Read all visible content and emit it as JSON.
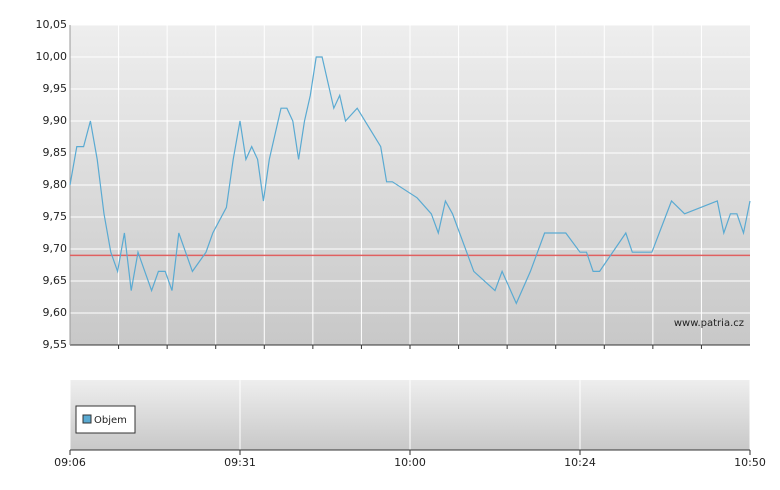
{
  "chart_data": {
    "type": "line",
    "x": [
      "09:06",
      "09:07",
      "09:08",
      "09:09",
      "09:10",
      "09:11",
      "09:12",
      "09:13",
      "09:14",
      "09:15",
      "09:16",
      "09:17",
      "09:18",
      "09:19",
      "09:20",
      "09:21",
      "09:22",
      "09:24",
      "09:26",
      "09:27",
      "09:29",
      "09:30",
      "09:31",
      "09:32",
      "09:33",
      "09:34",
      "09:35",
      "09:36",
      "09:38",
      "09:39",
      "09:40",
      "09:41",
      "09:42",
      "09:43",
      "09:44",
      "09:45",
      "09:47",
      "09:48",
      "09:49",
      "09:51",
      "09:55",
      "09:56",
      "09:57",
      "10:01",
      "10:03",
      "10:04",
      "10:05",
      "10:06",
      "10:09",
      "10:12",
      "10:13",
      "10:15",
      "10:17",
      "10:19",
      "10:22",
      "10:24",
      "10:25",
      "10:26",
      "10:27",
      "10:31",
      "10:32",
      "10:35",
      "10:38",
      "10:40",
      "10:45",
      "10:46",
      "10:47",
      "10:48",
      "10:49",
      "10:50"
    ],
    "series": [
      {
        "name": "Objem",
        "color": "#5aaad2",
        "values": [
          9.8,
          9.86,
          9.86,
          9.9,
          9.84,
          9.755,
          9.695,
          9.665,
          9.725,
          9.635,
          9.695,
          9.665,
          9.635,
          9.665,
          9.665,
          9.635,
          9.725,
          9.665,
          9.695,
          9.725,
          9.765,
          9.84,
          9.9,
          9.84,
          9.86,
          9.84,
          9.775,
          9.84,
          9.92,
          9.92,
          9.9,
          9.84,
          9.9,
          9.94,
          10.0,
          10.0,
          9.92,
          9.94,
          9.9,
          9.92,
          9.86,
          9.805,
          9.805,
          9.78,
          9.755,
          9.725,
          9.775,
          9.755,
          9.665,
          9.635,
          9.665,
          9.615,
          9.665,
          9.725,
          9.725,
          9.695,
          9.695,
          9.665,
          9.665,
          9.725,
          9.695,
          9.695,
          9.775,
          9.755,
          9.775,
          9.725,
          9.755,
          9.755,
          9.725,
          9.775
        ]
      }
    ],
    "reference_line": {
      "value": 9.69,
      "color": "#e06060"
    },
    "xticks": [
      "09:06",
      "09:31",
      "10:00",
      "10:24",
      "10:50"
    ],
    "ylim": [
      9.55,
      10.05
    ],
    "yticks": [
      {
        "value": 9.55,
        "label": "9,55"
      },
      {
        "value": 9.6,
        "label": "9,60"
      },
      {
        "value": 9.65,
        "label": "9,65"
      },
      {
        "value": 9.7,
        "label": "9,70"
      },
      {
        "value": 9.75,
        "label": "9,75"
      },
      {
        "value": 9.8,
        "label": "9,80"
      },
      {
        "value": 9.85,
        "label": "9,85"
      },
      {
        "value": 9.9,
        "label": "9,90"
      },
      {
        "value": 9.95,
        "label": "9,95"
      },
      {
        "value": 10.0,
        "label": "10,00"
      },
      {
        "value": 10.05,
        "label": "10,05"
      }
    ],
    "grid": true,
    "watermark": "www.patria.cz"
  }
}
